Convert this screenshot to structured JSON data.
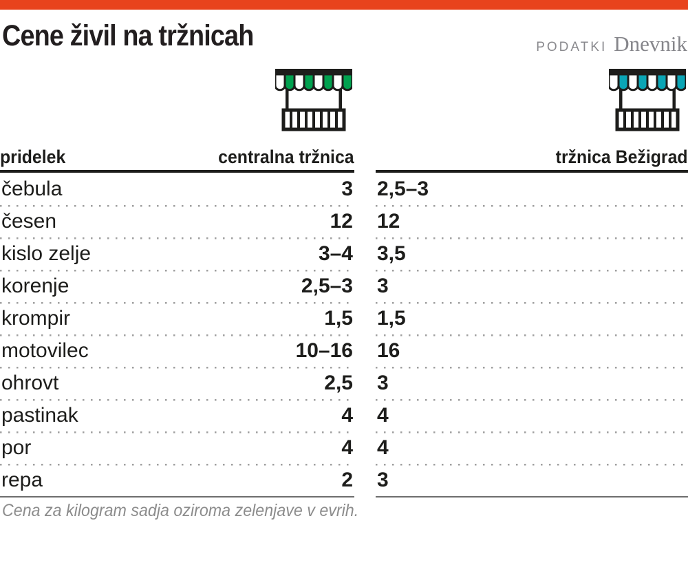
{
  "accent": {
    "topbar_color": "#e8431d"
  },
  "header": {
    "title": "Cene živil na tržnicah",
    "source_label": "PODATKI",
    "source_brand": "Dnevnik"
  },
  "table": {
    "product_col": "pridelek",
    "markets": [
      {
        "name": "centralna tržnica",
        "awning_color": "#00a14f"
      },
      {
        "name": "tržnica Bežigrad",
        "awning_color": "#0aa5b5"
      }
    ],
    "rows": [
      {
        "product": "čebula",
        "values": [
          "3",
          "2,5–3"
        ]
      },
      {
        "product": "česen",
        "values": [
          "12",
          "12"
        ]
      },
      {
        "product": "kislo zelje",
        "values": [
          "3–4",
          "3,5"
        ]
      },
      {
        "product": "korenje",
        "values": [
          "2,5–3",
          "3"
        ]
      },
      {
        "product": "krompir",
        "values": [
          "1,5",
          "1,5"
        ]
      },
      {
        "product": "motovilec",
        "values": [
          "10–16",
          "16"
        ]
      },
      {
        "product": "ohrovt",
        "values": [
          "2,5",
          "3"
        ]
      },
      {
        "product": "pastinak",
        "values": [
          "4",
          "4"
        ]
      },
      {
        "product": "por",
        "values": [
          "4",
          "4"
        ]
      },
      {
        "product": "repa",
        "values": [
          "2",
          "3"
        ]
      }
    ]
  },
  "footer": {
    "note": "Cena za kilogram sadja oziroma zelenjave v evrih."
  },
  "chart_data": {
    "type": "table",
    "title": "Cene živil na tržnicah",
    "source": "PODATKI Dnevnik",
    "columns": [
      "pridelek",
      "centralna tržnica",
      "tržnica Bežigrad"
    ],
    "rows": [
      [
        "čebula",
        "3",
        "2,5–3"
      ],
      [
        "česen",
        "12",
        "12"
      ],
      [
        "kislo zelje",
        "3–4",
        "3,5"
      ],
      [
        "korenje",
        "2,5–3",
        "3"
      ],
      [
        "krompir",
        "1,5",
        "1,5"
      ],
      [
        "motovilec",
        "10–16",
        "16"
      ],
      [
        "ohrovt",
        "2,5",
        "3"
      ],
      [
        "pastinak",
        "4",
        "4"
      ],
      [
        "por",
        "4",
        "4"
      ],
      [
        "repa",
        "2",
        "3"
      ]
    ],
    "note": "Cena za kilogram sadja oziroma zelenjave v evrih."
  }
}
